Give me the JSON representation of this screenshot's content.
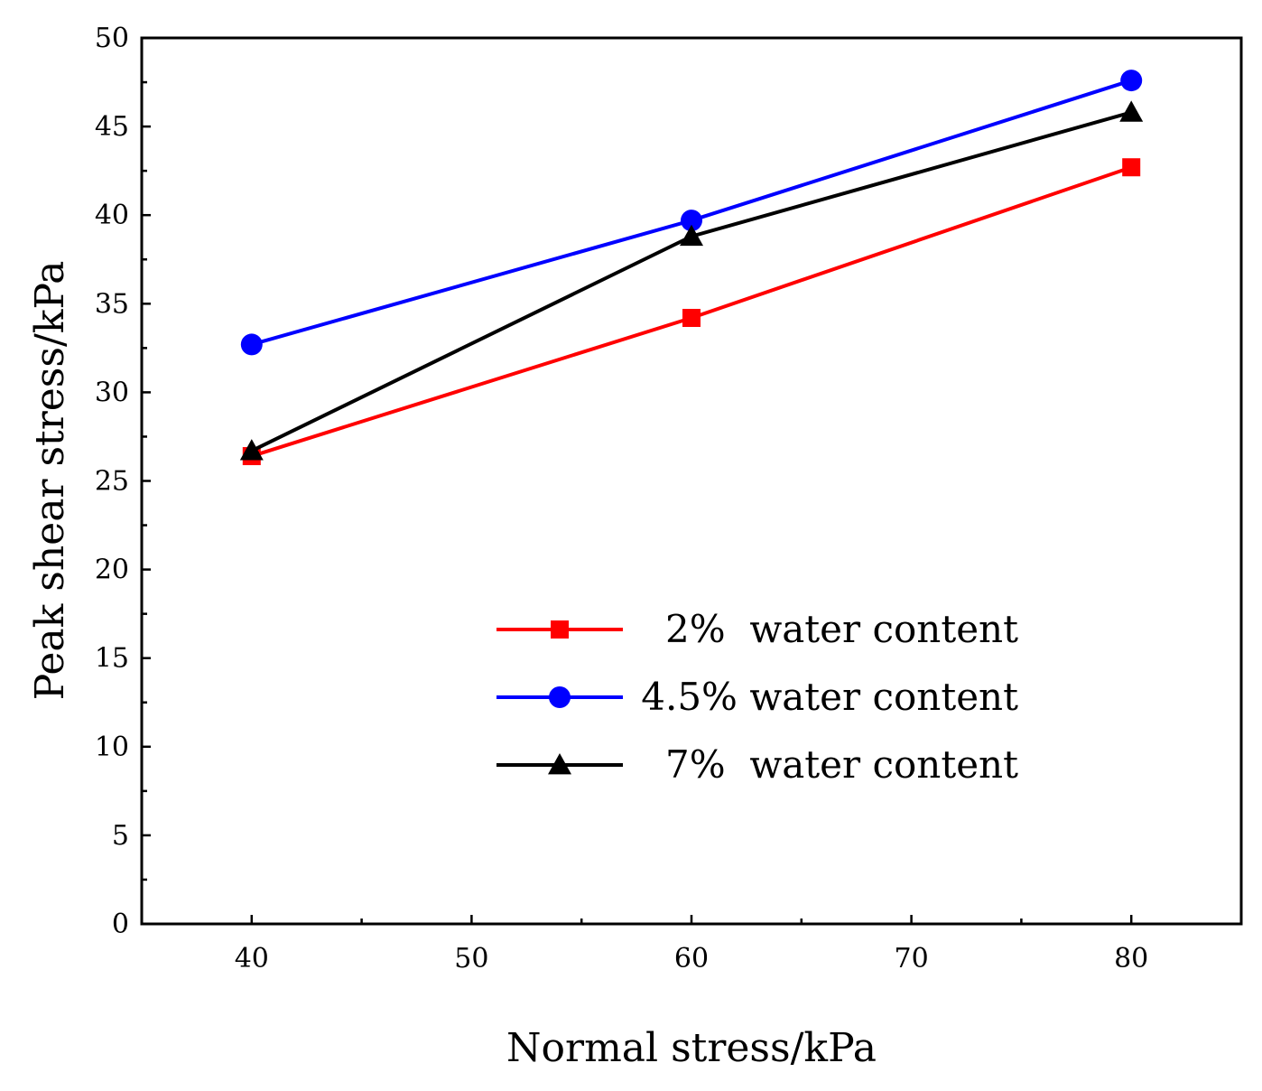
{
  "chart_data": {
    "type": "line",
    "xlabel": "Normal stress/kPa",
    "ylabel": "Peak shear stress/kPa",
    "xlim": [
      35,
      85
    ],
    "ylim": [
      0,
      50
    ],
    "x_ticks": [
      40,
      50,
      60,
      70,
      80
    ],
    "y_ticks": [
      0,
      5,
      10,
      15,
      20,
      25,
      30,
      35,
      40,
      45,
      50
    ],
    "x_tick_labels": [
      "40",
      "50",
      "60",
      "70",
      "80"
    ],
    "y_tick_labels": [
      "0",
      "5",
      "10",
      "15",
      "20",
      "25",
      "30",
      "35",
      "40",
      "45",
      "50"
    ],
    "grid": false,
    "legend_position": "lower-right",
    "x": [
      40,
      60,
      80
    ],
    "series": [
      {
        "name": "2%  water content",
        "values": [
          26.4,
          34.2,
          42.7
        ],
        "color": "#ff0000",
        "marker": "square"
      },
      {
        "name": "4.5% water content",
        "values": [
          32.7,
          39.7,
          47.6
        ],
        "color": "#0000ff",
        "marker": "circle"
      },
      {
        "name": "7%  water content",
        "values": [
          26.7,
          38.8,
          45.8
        ],
        "color": "#000000",
        "marker": "triangle"
      }
    ]
  }
}
